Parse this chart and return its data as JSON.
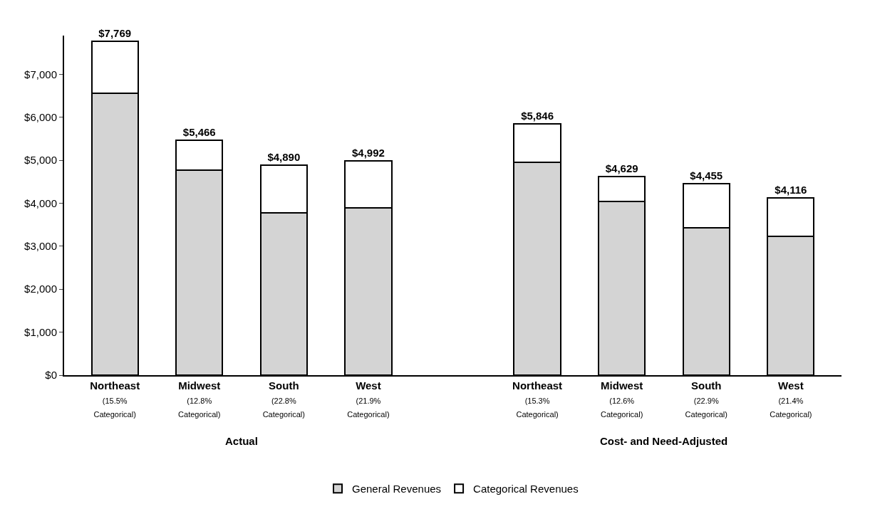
{
  "chart_data": {
    "type": "bar",
    "stacked": true,
    "categories": [
      "Northeast\n(15.5%\nCategorical)",
      "Midwest\n(12.8%\nCategorical)",
      "South\n(22.8%\nCategorical)",
      "West\n(21.9%\nCategorical)",
      null,
      "Northeast\n(15.3%\nCategorical)",
      "Midwest\n(12.6%\nCategorical)",
      "South\n(22.9%\nCategorical)",
      "West\n(21.4%\nCategorical)"
    ],
    "series": [
      {
        "name": "General Revenues",
        "color": "#d4d4d4",
        "values": [
          6565,
          4766,
          3775,
          3899,
          null,
          4952,
          4046,
          3435,
          3235
        ]
      },
      {
        "name": "Categorical Revenues",
        "color": "#ffffff",
        "values": [
          1204,
          700,
          1115,
          1093,
          null,
          894,
          583,
          1020,
          881
        ]
      }
    ],
    "totals": [
      "$7,769",
      "$5,466",
      "$4,890",
      "$4,992",
      null,
      "$5,846",
      "$4,629",
      "$4,455",
      "$4,116"
    ],
    "annotations": [
      "Actual",
      "Cost- and Need-Adjusted"
    ],
    "ylim": [
      0,
      7900
    ],
    "yticks": [
      {
        "value": 0,
        "label": "$0"
      },
      {
        "value": 1000,
        "label": "$1,000"
      },
      {
        "value": 2000,
        "label": "$2,000"
      },
      {
        "value": 3000,
        "label": "$3,000"
      },
      {
        "value": 4000,
        "label": "$4,000"
      },
      {
        "value": 5000,
        "label": "$5,000"
      },
      {
        "value": 6000,
        "label": "$6,000"
      },
      {
        "value": 7000,
        "label": "$7,000"
      }
    ],
    "legend": "bottom"
  }
}
